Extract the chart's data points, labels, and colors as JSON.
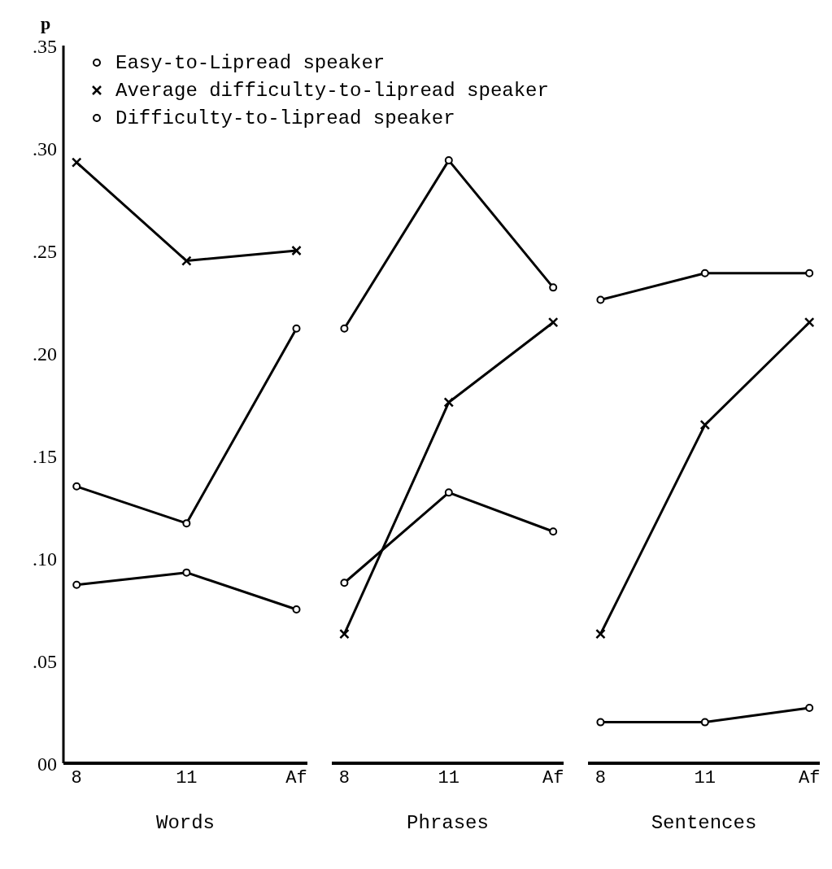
{
  "chart_data": [
    {
      "type": "line",
      "xlabel": "Words",
      "ylabel": "p",
      "categories": [
        "8",
        "11",
        "Af"
      ],
      "ylim": [
        0,
        0.35
      ],
      "yticks": [
        {
          "value": 0,
          "label": "00"
        },
        {
          "value": 0.05,
          "label": ".05"
        },
        {
          "value": 0.1,
          "label": ".10"
        },
        {
          "value": 0.15,
          "label": ".15"
        },
        {
          "value": 0.2,
          "label": ".20"
        },
        {
          "value": 0.25,
          "label": ".25"
        },
        {
          "value": 0.3,
          "label": ".30"
        },
        {
          "value": 0.35,
          "label": ".35"
        }
      ],
      "legend": "top",
      "grid": false,
      "series": [
        {
          "name": "Easy-to-Lipread speaker",
          "color": "#000000",
          "marker": "circle",
          "values": [
            0.135,
            0.117,
            0.212
          ]
        },
        {
          "name": "Average difficulty-to-lipread speaker",
          "color": "#000000",
          "marker": "cross",
          "values": [
            0.293,
            0.245,
            0.25
          ]
        },
        {
          "name": "Difficulty-to-lipread speaker",
          "color": "#000000",
          "marker": "circle",
          "values": [
            0.087,
            0.093,
            0.075
          ]
        }
      ]
    },
    {
      "type": "line",
      "xlabel": "Phrases",
      "categories": [
        "8",
        "11",
        "Af"
      ],
      "ylim": [
        0,
        0.35
      ],
      "tick_labels": "x",
      "grid": false,
      "series": [
        {
          "color": "#000000",
          "marker": "circle",
          "values": [
            0.212,
            0.294,
            0.232
          ]
        },
        {
          "color": "#000000",
          "marker": "cross",
          "values": [
            0.063,
            0.176,
            0.215
          ]
        },
        {
          "color": "#000000",
          "marker": "circle",
          "values": [
            0.088,
            0.132,
            0.113
          ]
        }
      ]
    },
    {
      "type": "line",
      "xlabel": "Sentences",
      "categories": [
        "8",
        "11",
        "Af"
      ],
      "ylim": [
        0,
        0.35
      ],
      "tick_labels": "x",
      "grid": false,
      "series": [
        {
          "color": "#000000",
          "marker": "circle",
          "values": [
            0.226,
            0.239,
            0.239
          ]
        },
        {
          "color": "#000000",
          "marker": "cross",
          "values": [
            0.063,
            0.165,
            0.215
          ]
        },
        {
          "color": "#000000",
          "marker": "circle",
          "values": [
            0.02,
            0.02,
            0.027
          ]
        }
      ]
    }
  ]
}
